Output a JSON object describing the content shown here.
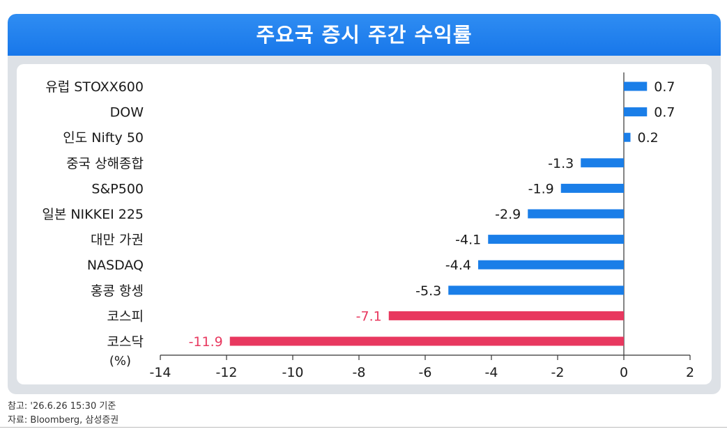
{
  "title": "주요국 증시 주간 수익률",
  "notes": {
    "reference": "참고: '26.6.26 15:30 기준",
    "source": "자료: Bloomberg, 삼성증권"
  },
  "colors": {
    "positive_bar": "#1a7ee8",
    "negative_bar": "#1a7ee8",
    "highlight_bar": "#e8385f",
    "highlight_label": "#e8385f",
    "banner": "#1f82ee"
  },
  "chart_data": {
    "type": "bar",
    "orientation": "horizontal",
    "categories": [
      "유럽 STOXX600",
      "DOW",
      "인도 Nifty 50",
      "중국 상해종합",
      "S&P500",
      "일본 NIKKEI 225",
      "대만 가권",
      "NASDAQ",
      "홍콩 항셍",
      "코스피",
      "코스닥"
    ],
    "values": [
      0.7,
      0.7,
      0.2,
      -1.3,
      -1.9,
      -2.9,
      -4.1,
      -4.4,
      -5.3,
      -7.1,
      -11.9
    ],
    "value_labels": [
      "0.7",
      "0.7",
      "0.2",
      "-1.3",
      "-1.9",
      "-2.9",
      "-4.1",
      "-4.4",
      "-5.3",
      "-7.1",
      "-11.9"
    ],
    "highlighted": [
      "코스피",
      "코스닥"
    ],
    "xlim": [
      -14,
      2
    ],
    "xticks": [
      -14,
      -12,
      -10,
      -8,
      -6,
      -4,
      -2,
      0,
      2
    ],
    "xtick_labels": [
      "-14",
      "-12",
      "-10",
      "-8",
      "-6",
      "-4",
      "-2",
      "0",
      "2"
    ],
    "unit_label": "(%)",
    "grid": false
  }
}
